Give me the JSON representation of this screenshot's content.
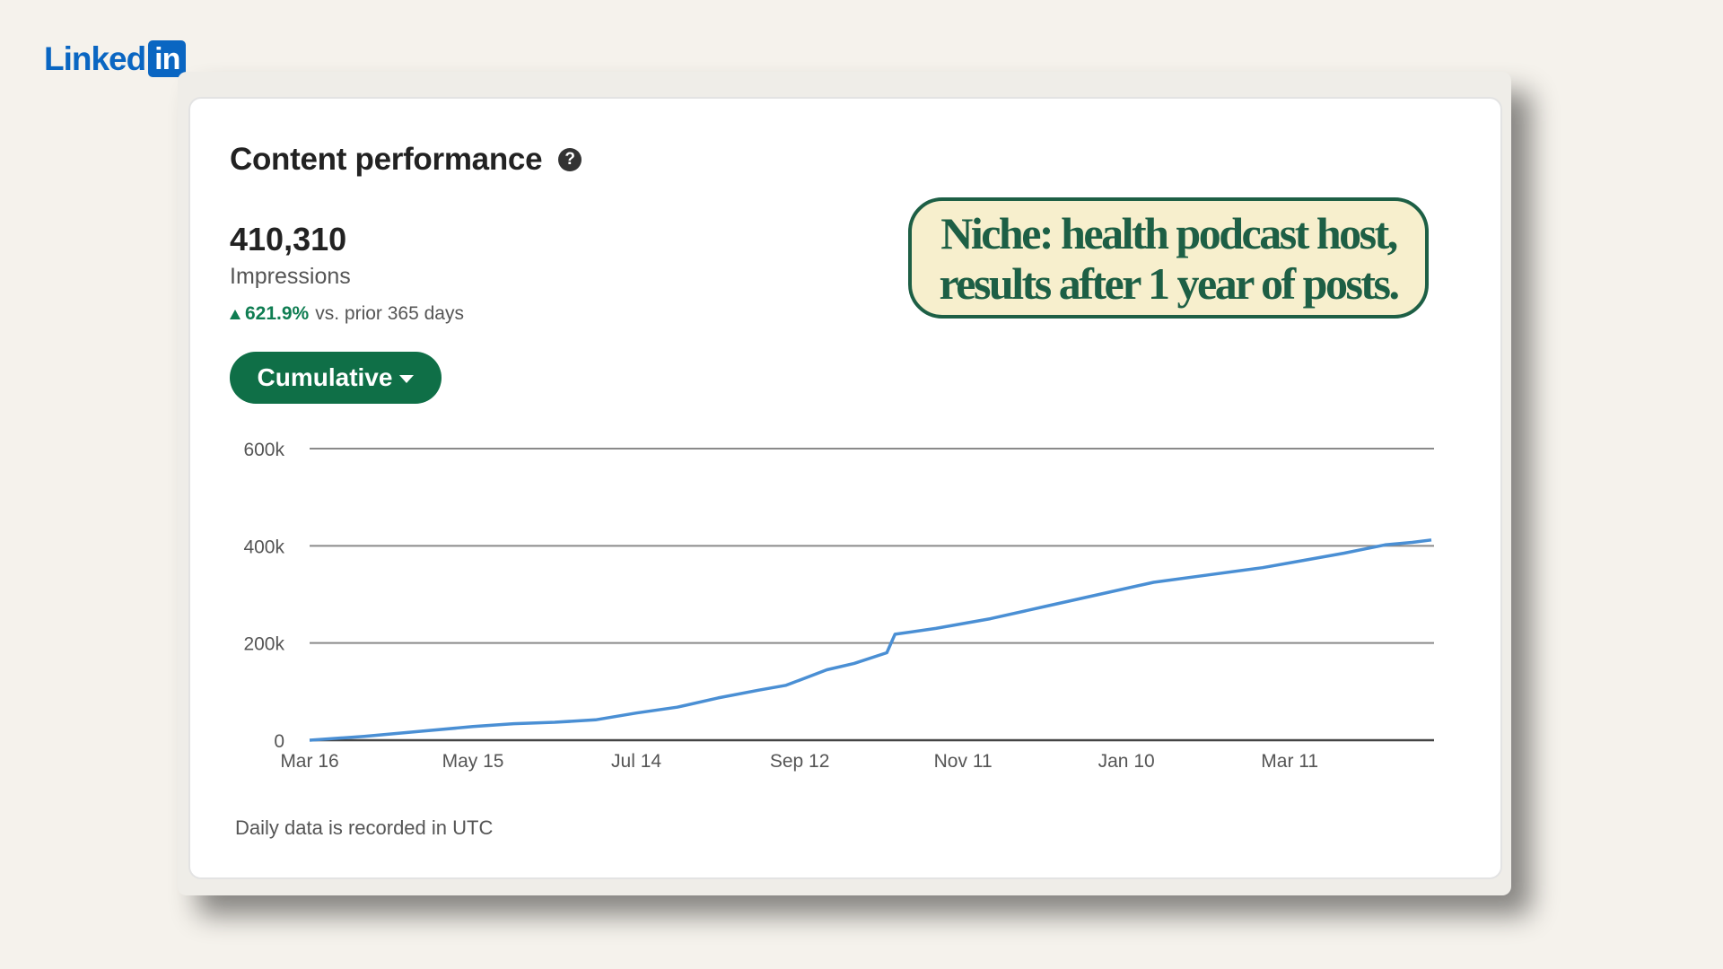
{
  "brand": {
    "logo_word": "Linked",
    "logo_box": "in"
  },
  "card": {
    "title": "Content performance",
    "help_icon": "question-circle-icon",
    "metric_value": "410,310",
    "metric_label": "Impressions",
    "change_value": "621.9%",
    "change_suffix": "vs. prior 365 days",
    "change_color": "#0f7d52",
    "dropdown_label": "Cumulative",
    "footnote": "Daily data is recorded in UTC"
  },
  "callout": {
    "line1": "Niche: health podcast host,",
    "line2": "results after 1 year of posts."
  },
  "colors": {
    "brand": "#0a66c2",
    "accent": "#0f6f47",
    "line": "#4a8fd4"
  },
  "chart_data": {
    "type": "line",
    "x_ticks": [
      "Mar 16",
      "May 15",
      "Jul 14",
      "Sep 12",
      "Nov 11",
      "Jan 10",
      "Mar 11"
    ],
    "y_ticks": [
      "0",
      "200k",
      "400k",
      "600k"
    ],
    "ylim": [
      0,
      600000
    ],
    "grid": true,
    "series": [
      {
        "values": [
          {
            "day": 0,
            "value": 0
          },
          {
            "day": 20,
            "value": 8000
          },
          {
            "day": 40,
            "value": 18000
          },
          {
            "day": 60,
            "value": 28000
          },
          {
            "day": 75,
            "value": 34000
          },
          {
            "day": 90,
            "value": 37000
          },
          {
            "day": 105,
            "value": 42000
          },
          {
            "day": 120,
            "value": 56000
          },
          {
            "day": 135,
            "value": 68000
          },
          {
            "day": 150,
            "value": 87000
          },
          {
            "day": 165,
            "value": 103000
          },
          {
            "day": 175,
            "value": 113000
          },
          {
            "day": 190,
            "value": 145000
          },
          {
            "day": 200,
            "value": 158000
          },
          {
            "day": 212,
            "value": 180000
          },
          {
            "day": 215,
            "value": 218000
          },
          {
            "day": 230,
            "value": 230000
          },
          {
            "day": 250,
            "value": 250000
          },
          {
            "day": 270,
            "value": 275000
          },
          {
            "day": 290,
            "value": 300000
          },
          {
            "day": 310,
            "value": 325000
          },
          {
            "day": 330,
            "value": 340000
          },
          {
            "day": 350,
            "value": 355000
          },
          {
            "day": 365,
            "value": 370000
          },
          {
            "day": 380,
            "value": 385000
          },
          {
            "day": 395,
            "value": 402000
          },
          {
            "day": 405,
            "value": 407000
          },
          {
            "day": 412,
            "value": 412000
          }
        ]
      }
    ]
  }
}
